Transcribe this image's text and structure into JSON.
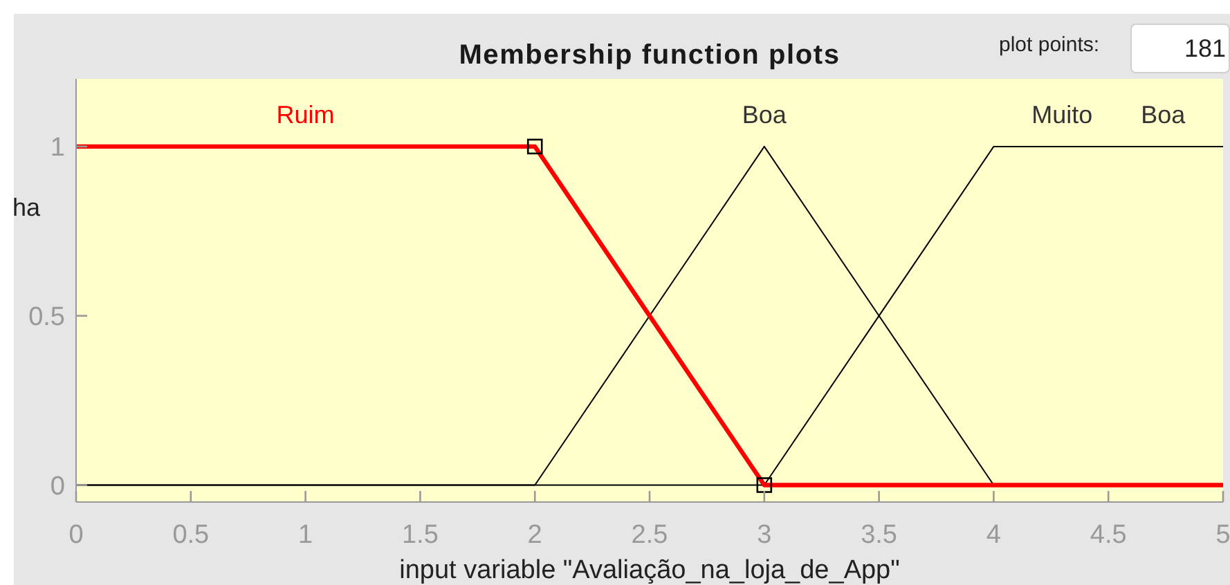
{
  "chart_data": {
    "type": "line",
    "title": "Membership function plots",
    "xlabel": "input variable \"Avaliação_na_loja_de_App\"",
    "ylabel": "ha",
    "annotations": [
      "plot points:",
      "181"
    ],
    "xlim": [
      0,
      5
    ],
    "ylim": [
      -0.05,
      1.2
    ],
    "xticks": [
      0,
      0.5,
      1,
      1.5,
      2,
      2.5,
      3,
      3.5,
      4,
      4.5,
      5
    ],
    "yticks": [
      0,
      0.5,
      1
    ],
    "grid": false,
    "marker": "none",
    "series": [
      {
        "name": "Ruim",
        "color": "#ff0000",
        "x": [
          0,
          2,
          3,
          5
        ],
        "values": [
          1,
          1,
          0,
          0
        ]
      },
      {
        "name": "Boa",
        "color": "#000000",
        "x": [
          0,
          2,
          3,
          4,
          5
        ],
        "values": [
          0,
          0,
          1,
          0,
          0
        ]
      },
      {
        "name": "Muito Boa",
        "color": "#000000",
        "x": [
          0,
          3,
          4,
          5
        ],
        "values": [
          0,
          0,
          1,
          1
        ]
      },
      {
        "type": "scatter",
        "color": "#000000",
        "marker": "square",
        "x": [
          2,
          3
        ],
        "values": [
          1,
          0
        ]
      }
    ]
  }
}
